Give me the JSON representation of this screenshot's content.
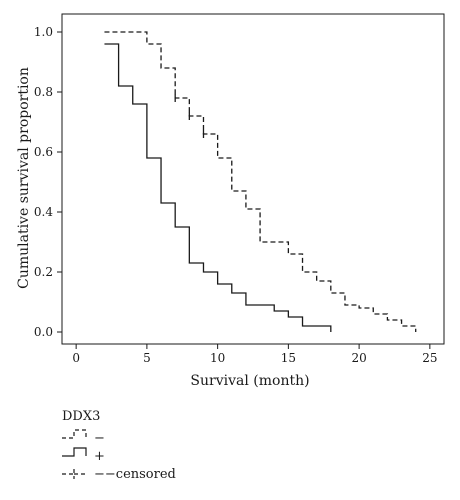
{
  "chart_data": {
    "type": "line",
    "xlabel": "Survival (month)",
    "ylabel": "Cumulative survival proportion",
    "xlim": [
      -1,
      26
    ],
    "ylim": [
      -0.04,
      1.06
    ],
    "xticks": [
      0,
      5,
      10,
      15,
      20,
      25
    ],
    "yticks": [
      0.0,
      0.2,
      0.4,
      0.6,
      0.8,
      1.0
    ],
    "ytick_labels": [
      "0.0",
      "0.2",
      "0.4",
      "0.6",
      "0.8",
      "1.0"
    ],
    "legend_title": "DDX3",
    "legend_position": "below-left",
    "series": [
      {
        "name": "−",
        "style": "dashed",
        "steps": [
          [
            2,
            1.0
          ],
          [
            5,
            0.96
          ],
          [
            6,
            0.88
          ],
          [
            7,
            0.78
          ],
          [
            8,
            0.72
          ],
          [
            9,
            0.66
          ],
          [
            10,
            0.58
          ],
          [
            11,
            0.47
          ],
          [
            12,
            0.41
          ],
          [
            13,
            0.3
          ],
          [
            15,
            0.26
          ],
          [
            16,
            0.2
          ],
          [
            17,
            0.17
          ],
          [
            18,
            0.13
          ],
          [
            19,
            0.09
          ],
          [
            20,
            0.08
          ],
          [
            21,
            0.06
          ],
          [
            22,
            0.04
          ],
          [
            23,
            0.02
          ],
          [
            24,
            0.0
          ]
        ],
        "censored": [
          [
            7,
            0.78
          ],
          [
            8,
            0.72
          ],
          [
            9,
            0.66
          ]
        ]
      },
      {
        "name": "+",
        "style": "solid",
        "steps": [
          [
            2,
            0.96
          ],
          [
            3,
            0.82
          ],
          [
            4,
            0.76
          ],
          [
            5,
            0.58
          ],
          [
            6,
            0.43
          ],
          [
            7,
            0.35
          ],
          [
            8,
            0.23
          ],
          [
            9,
            0.2
          ],
          [
            10,
            0.16
          ],
          [
            11,
            0.13
          ],
          [
            12,
            0.09
          ],
          [
            14,
            0.07
          ],
          [
            15,
            0.05
          ],
          [
            16,
            0.02
          ],
          [
            18,
            0.0
          ]
        ],
        "censored": []
      }
    ],
    "legend": [
      {
        "label": "−",
        "style": "dashed"
      },
      {
        "label": "+",
        "style": "solid"
      },
      {
        "label": "−−censored",
        "style": "censor"
      }
    ],
    "colors": {
      "line": "#1a1a1a",
      "axis": "#1a1a1a"
    }
  }
}
